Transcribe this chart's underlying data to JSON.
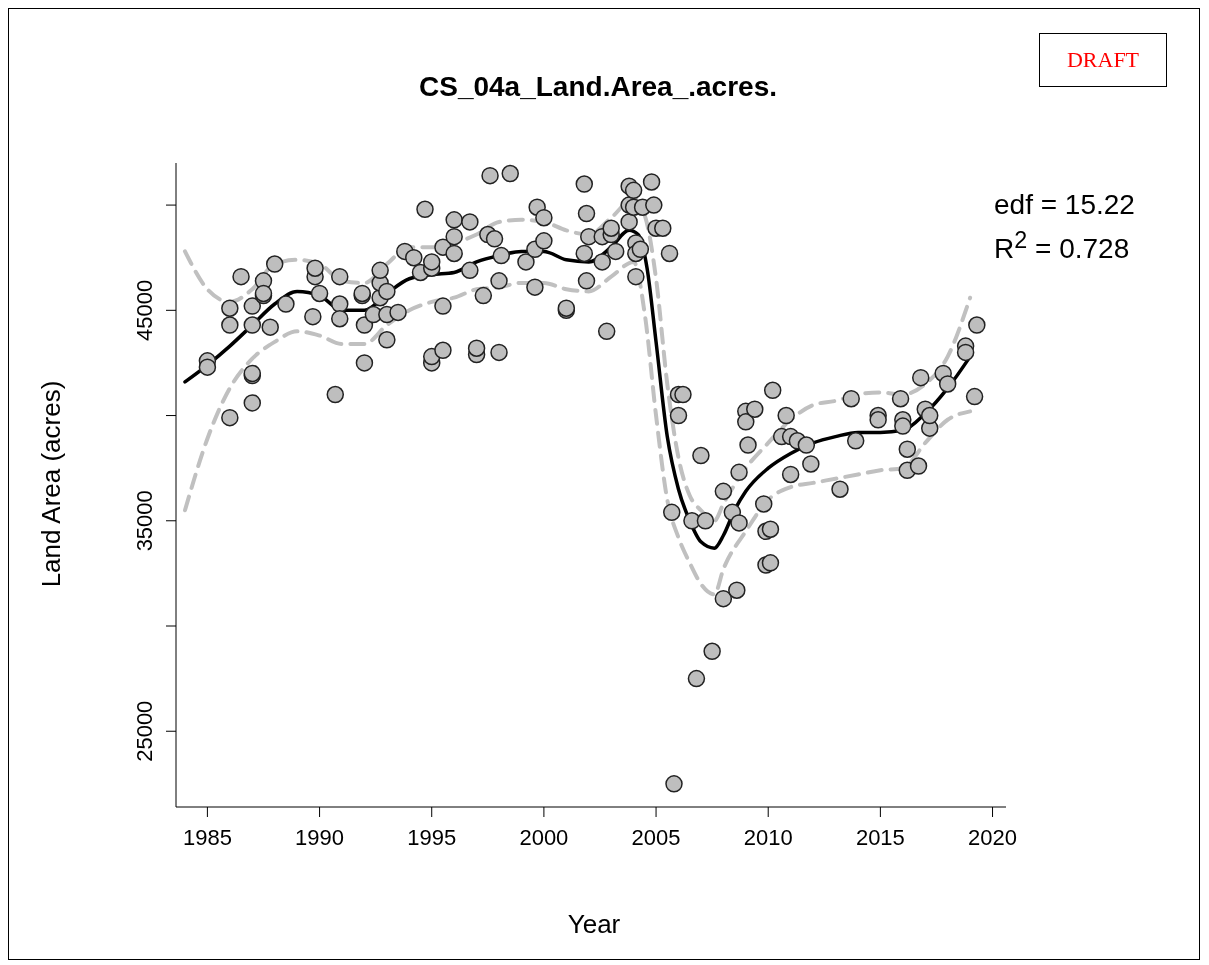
{
  "chart_data": {
    "type": "scatter",
    "title": "CS_04a_Land.Area_.acres.",
    "xlabel": "Year",
    "ylabel": "Land Area (acres)",
    "annotations": [
      "edf = 15.22",
      "R$^{2}$ = 0.728",
      "DRAFT"
    ],
    "xlim": [
      1983.6,
      2020.6
    ],
    "xticks": [
      1985,
      1990,
      1995,
      2000,
      2005,
      2010,
      2015,
      2020
    ],
    "ylim": [
      21400,
      52000
    ],
    "yticks": [
      25000,
      {
        "value": 30000,
        "label": null
      },
      35000,
      {
        "value": 40000,
        "label": null
      },
      45000,
      {
        "value": 50000,
        "label": null
      }
    ],
    "series": [
      {
        "marker": "circle",
        "color": "#bebebe",
        "x": [
          1985,
          1985,
          1986,
          1986,
          1986,
          1986.5,
          1987,
          1987,
          1987,
          1987,
          1987,
          1987.5,
          1987.5,
          1987.5,
          1987.8,
          1988,
          1988.5,
          1989.7,
          1989.8,
          1989.8,
          1990,
          1990.7,
          1990.9,
          1990.9,
          1990.9,
          1991.9,
          1991.9,
          1992,
          1992,
          1992.4,
          1992.7,
          1992.7,
          1992.7,
          1993,
          1993,
          1993,
          1993.5,
          1993.8,
          1994.2,
          1994.5,
          1994.7,
          1995,
          1995,
          1995,
          1995,
          1995.5,
          1995.5,
          1995.5,
          1996,
          1996,
          1996,
          1996.7,
          1996.7,
          1997,
          1997,
          1997.3,
          1997.5,
          1997.6,
          1997.8,
          1998,
          1998,
          1998.1,
          1998.5,
          1999.2,
          1999.6,
          1999.6,
          1999.7,
          2000,
          2000,
          2001,
          2001,
          2001.8,
          2001.8,
          2001.9,
          2001.9,
          2002,
          2002.6,
          2002.6,
          2002.8,
          2003,
          2003,
          2003.2,
          2003.8,
          2003.8,
          2003.8,
          2004,
          2004,
          2004.1,
          2004.1,
          2004.1,
          2004.3,
          2004.4,
          2004.8,
          2004.9,
          2005,
          2005.3,
          2005.6,
          2005.7,
          2005.8,
          2006,
          2006,
          2006.2,
          2006.6,
          2006.8,
          2007,
          2007.2,
          2007.5,
          2008,
          2008,
          2008.4,
          2008.6,
          2008.7,
          2008.7,
          2009,
          2009,
          2009.1,
          2009.4,
          2009.8,
          2009.9,
          2009.9,
          2010.1,
          2010.1,
          2010.2,
          2010.6,
          2010.8,
          2011,
          2011,
          2011.3,
          2011.7,
          2011.9,
          2013.2,
          2013.7,
          2013.9,
          2014.9,
          2014.9,
          2015.9,
          2016,
          2016,
          2016.2,
          2016.2,
          2016.7,
          2016.8,
          2017,
          2017.2,
          2017.2,
          2017.8,
          2018,
          2018.8,
          2018.8,
          2019.2,
          2019.3
        ],
        "values": [
          42600,
          42300,
          39900,
          44300,
          45100,
          46600,
          44300,
          45200,
          41900,
          40600,
          42000,
          45700,
          46400,
          45800,
          44200,
          47200,
          45300,
          44700,
          46600,
          47000,
          45800,
          41000,
          45300,
          46600,
          44600,
          45700,
          45800,
          42500,
          44300,
          44800,
          45600,
          46300,
          46900,
          44800,
          43600,
          45900,
          44900,
          47800,
          47500,
          46800,
          49800,
          47000,
          47300,
          42500,
          42800,
          48000,
          43100,
          45200,
          48500,
          47700,
          49300,
          46900,
          49200,
          42900,
          43200,
          45700,
          48600,
          51400,
          48400,
          46400,
          43000,
          47600,
          51500,
          47300,
          47900,
          46100,
          49900,
          48300,
          49400,
          45000,
          45100,
          47700,
          51000,
          49600,
          46400,
          48500,
          47300,
          48500,
          44000,
          48600,
          48900,
          47800,
          50900,
          50000,
          49200,
          49900,
          50700,
          48200,
          47700,
          46600,
          47900,
          49900,
          51100,
          50000,
          48900,
          48900,
          47700,
          35400,
          22500,
          40000,
          41000,
          41000,
          35000,
          27500,
          38100,
          35000,
          28800,
          31300,
          36400,
          35400,
          31700,
          34900,
          37300,
          40200,
          39700,
          38600,
          40300,
          35800,
          34500,
          32900,
          34600,
          33000,
          41200,
          39000,
          40000,
          37200,
          39000,
          38800,
          38600,
          37700,
          36500,
          40800,
          38800,
          40000,
          39800,
          40800,
          39800,
          39500,
          37400,
          38400,
          37600,
          41800,
          40300,
          39400,
          40000,
          42000,
          41500,
          43300,
          43000,
          40900,
          44300
        ]
      },
      {
        "type": "line",
        "color": "#000000",
        "line_style": "solid",
        "x": [
          1984,
          1985,
          1986,
          1987,
          1988,
          1989,
          1990,
          1991,
          1992,
          1993,
          1994,
          1995,
          1996,
          1997,
          1998,
          1999,
          2000,
          2001,
          2002,
          2003,
          2003.8,
          2004.2,
          2004.6,
          2005,
          2005.5,
          2006,
          2006.5,
          2007,
          2007.6,
          2008,
          2008.5,
          2009,
          2010,
          2011,
          2012,
          2013,
          2014,
          2015,
          2016,
          2017,
          2018,
          2019
        ],
        "values": [
          41600,
          42400,
          43300,
          44300,
          45300,
          45900,
          45700,
          45000,
          45000,
          45800,
          46500,
          46700,
          46800,
          47300,
          47600,
          47800,
          47800,
          47400,
          47300,
          48000,
          48800,
          48600,
          47000,
          43500,
          39000,
          36500,
          35000,
          34000,
          33700,
          34300,
          35500,
          36400,
          37500,
          38200,
          38700,
          39000,
          39200,
          39200,
          39300,
          40100,
          41300,
          42800
        ]
      },
      {
        "type": "line",
        "color": "#c0c0c0",
        "line_style": "dashed",
        "x": [
          1984,
          1985,
          1986,
          1987,
          1988,
          1989,
          1990,
          1991,
          1992,
          1993,
          1994,
          1995,
          1996,
          1997,
          1998,
          1999,
          2000,
          2001,
          2002,
          2003,
          2004,
          2004.5,
          2005,
          2005.5,
          2006,
          2006.5,
          2007,
          2007.6,
          2008,
          2009,
          2010,
          2011,
          2012,
          2013,
          2014,
          2015,
          2016,
          2017,
          2018,
          2019
        ],
        "values": [
          47800,
          46000,
          45400,
          46000,
          47200,
          47400,
          47200,
          46400,
          46300,
          47200,
          48000,
          48000,
          48200,
          48600,
          49200,
          49300,
          49200,
          48800,
          48600,
          49400,
          50300,
          49500,
          46500,
          41500,
          38000,
          36200,
          35500,
          35000,
          35800,
          37500,
          38700,
          39800,
          40500,
          40700,
          41000,
          41100,
          41000,
          41500,
          42800,
          45600
        ]
      },
      {
        "type": "line",
        "color": "#c0c0c0",
        "line_style": "dashed",
        "x": [
          1984,
          1985,
          1986,
          1987,
          1988,
          1989,
          1990,
          1991,
          1992,
          1993,
          1994,
          1995,
          1996,
          1997,
          1998,
          1999,
          2000,
          2001,
          2002,
          2003,
          2004,
          2004.5,
          2005,
          2005.5,
          2006,
          2006.5,
          2007,
          2007.6,
          2008,
          2009,
          2010,
          2011,
          2012,
          2013,
          2014,
          2015,
          2016,
          2017,
          2018,
          2019
        ],
        "values": [
          35500,
          38900,
          41300,
          42700,
          43500,
          44000,
          43800,
          43400,
          43400,
          44300,
          45000,
          45400,
          45600,
          46000,
          46100,
          46300,
          46300,
          46000,
          45900,
          46600,
          47300,
          44800,
          40000,
          36000,
          34200,
          33000,
          32000,
          31500,
          32700,
          34500,
          36000,
          36600,
          36800,
          37000,
          37200,
          37400,
          37500,
          38700,
          39800,
          40200
        ]
      }
    ]
  }
}
